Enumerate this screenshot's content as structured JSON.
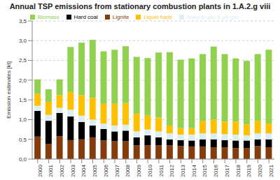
{
  "chart_data": {
    "type": "bar",
    "title": "Annual TSP emissions from stationary combustion plants in 1.A.2.g viii",
    "y_label": "Emission estimates [kt]",
    "stacked": true,
    "grid": true,
    "legend": "top",
    "categories": [
      "2000",
      "2001",
      "2002",
      "2003",
      "2004",
      "2005",
      "2006",
      "2007",
      "2008",
      "2009",
      "2010",
      "2011",
      "2012",
      "2013",
      "2014",
      "2015",
      "2016",
      "2017",
      "2018",
      "2019",
      "2020",
      "2021"
    ],
    "series": [
      {
        "name": "Lignite",
        "color": "#843c0c",
        "values": [
          0.57,
          0.38,
          0.58,
          0.48,
          0.5,
          0.55,
          0.47,
          0.45,
          0.45,
          0.35,
          0.35,
          0.35,
          0.35,
          0.33,
          0.32,
          0.32,
          0.3,
          0.3,
          0.28,
          0.28,
          0.33,
          0.3
        ]
      },
      {
        "name": "Hard coal",
        "color": "#000000",
        "values": [
          0.65,
          0.59,
          0.59,
          0.6,
          0.44,
          0.3,
          0.29,
          0.25,
          0.27,
          0.2,
          0.25,
          0.2,
          0.15,
          0.15,
          0.15,
          0.18,
          0.2,
          0.18,
          0.19,
          0.19,
          0.17,
          0.2
        ]
      },
      {
        "name": "Natural gas & pit gas",
        "color": "#daeef3",
        "values": [
          0.13,
          0.15,
          0.13,
          0.17,
          0.16,
          0.15,
          0.14,
          0.15,
          0.15,
          0.15,
          0.15,
          0.15,
          0.15,
          0.14,
          0.15,
          0.15,
          0.15,
          0.15,
          0.15,
          0.13,
          0.15,
          0.15
        ]
      },
      {
        "name": "Liquid fuels",
        "color": "#ffc000",
        "values": [
          0.3,
          0.33,
          0.32,
          0.45,
          0.52,
          0.55,
          0.5,
          0.55,
          0.55,
          0.45,
          0.35,
          0.35,
          0.2,
          0.16,
          0.16,
          0.32,
          0.35,
          0.32,
          0.33,
          0.28,
          0.32,
          0.25
        ]
      },
      {
        "name": "Biomass",
        "color": "#92d050",
        "values": [
          0.37,
          0.32,
          0.4,
          1.14,
          1.33,
          1.47,
          1.33,
          1.37,
          1.44,
          1.44,
          1.46,
          1.65,
          1.86,
          1.74,
          1.77,
          1.69,
          1.85,
          1.71,
          1.6,
          1.61,
          1.69,
          1.87
        ]
      }
    ],
    "ylim": [
      0,
      3.5
    ],
    "yticks": [
      {
        "value": 0,
        "label": "0,0"
      },
      {
        "value": 0.5,
        "label": "0,5"
      },
      {
        "value": 1,
        "label": "1,0"
      },
      {
        "value": 1.5,
        "label": "1,5"
      },
      {
        "value": 2,
        "label": "2,0"
      },
      {
        "value": 2.5,
        "label": "2,5"
      },
      {
        "value": 3,
        "label": "3,0"
      },
      {
        "value": 3.5,
        "label": "3,5"
      }
    ]
  }
}
